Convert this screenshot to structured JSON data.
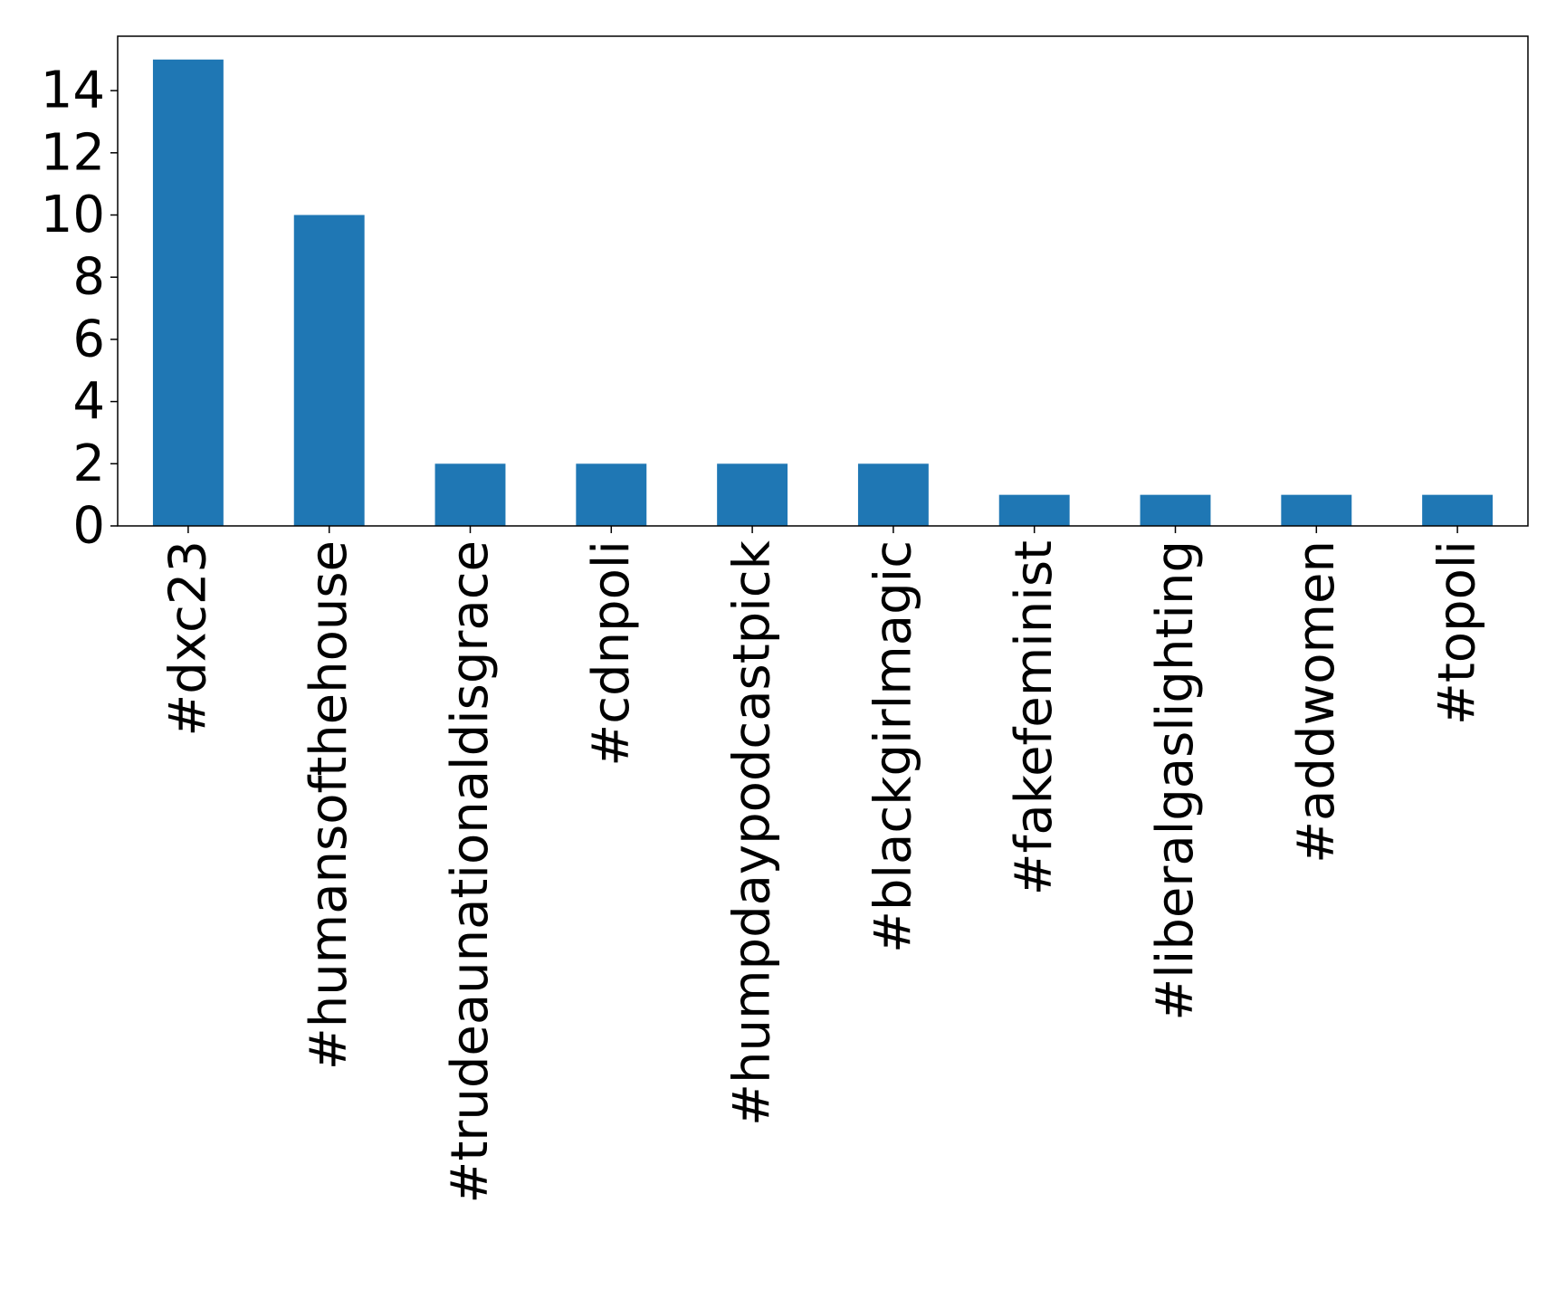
{
  "chart_data": {
    "type": "bar",
    "categories": [
      "#dxc23",
      "#humansofthehouse",
      "#trudeaunationaldisgrace",
      "#cdnpoli",
      "#humpdaypodcastpick",
      "#blackgirlmagic",
      "#fakefeminist",
      "#liberalgaslighting",
      "#addwomen",
      "#topoli"
    ],
    "values": [
      15,
      10,
      2,
      2,
      2,
      2,
      1,
      1,
      1,
      1
    ],
    "yticks": [
      0,
      2,
      4,
      6,
      8,
      10,
      12,
      14
    ],
    "ylim": [
      0,
      15.75
    ],
    "title": "",
    "xlabel": "",
    "ylabel": "",
    "bar_color": "#1f77b4",
    "grid": false,
    "legend": "none"
  }
}
